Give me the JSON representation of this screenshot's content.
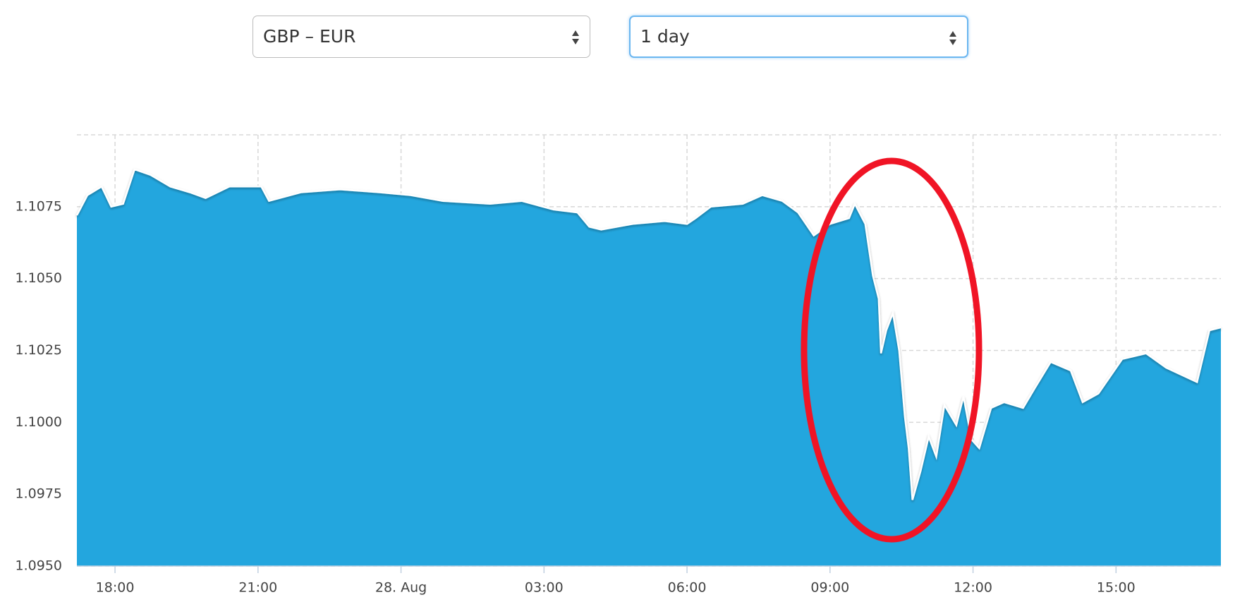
{
  "controls": {
    "pair": "GBP – EUR",
    "period": "1 day"
  },
  "chart_data": {
    "type": "area",
    "color": "#23a6de",
    "line_color": "#ffffff",
    "grid": true,
    "xlim": [
      17.2,
      41.2
    ],
    "ylim": [
      1.095,
      1.11
    ],
    "xticks": [
      {
        "value": 18,
        "label": "18:00"
      },
      {
        "value": 21,
        "label": "21:00"
      },
      {
        "value": 24,
        "label": "28. Aug"
      },
      {
        "value": 27,
        "label": "03:00"
      },
      {
        "value": 30,
        "label": "06:00"
      },
      {
        "value": 33,
        "label": "09:00"
      },
      {
        "value": 36,
        "label": "12:00"
      },
      {
        "value": 39,
        "label": "15:00"
      }
    ],
    "yticks": [
      {
        "value": 1.095,
        "label": "1.0950"
      },
      {
        "value": 1.0975,
        "label": "1.0975"
      },
      {
        "value": 1.1,
        "label": "1.1000"
      },
      {
        "value": 1.1025,
        "label": "1.1025"
      },
      {
        "value": 1.105,
        "label": "1.1050"
      },
      {
        "value": 1.1075,
        "label": "1.1075"
      }
    ],
    "x": [
      17.2,
      17.42,
      17.72,
      17.92,
      18.17,
      18.41,
      18.75,
      19.16,
      19.57,
      19.9,
      20.4,
      21.07,
      21.23,
      21.9,
      22.72,
      23.55,
      24.2,
      24.88,
      25.87,
      26.53,
      27.2,
      27.7,
      27.95,
      28.2,
      28.86,
      29.53,
      30.0,
      30.18,
      30.5,
      31.17,
      31.58,
      32.0,
      32.33,
      32.66,
      33.0,
      33.4,
      33.52,
      33.74,
      33.9,
      34.02,
      34.07,
      34.18,
      34.32,
      34.45,
      34.57,
      34.65,
      34.73,
      34.9,
      35.07,
      35.23,
      35.4,
      35.65,
      35.8,
      35.97,
      36.13,
      36.38,
      36.65,
      37.05,
      37.3,
      37.63,
      38.05,
      38.3,
      38.63,
      39.13,
      39.63,
      40.05,
      40.7,
      40.96,
      41.2
    ],
    "values": [
      1.1072,
      1.1079,
      1.1082,
      1.1075,
      1.1076,
      1.1088,
      1.1086,
      1.1082,
      1.108,
      1.1078,
      1.1082,
      1.1082,
      1.1077,
      1.108,
      1.1081,
      1.108,
      1.1079,
      1.1077,
      1.1076,
      1.1077,
      1.1074,
      1.1073,
      1.1068,
      1.1067,
      1.1069,
      1.107,
      1.1069,
      1.1071,
      1.1075,
      1.1076,
      1.1079,
      1.1077,
      1.1073,
      1.1065,
      1.1069,
      1.1071,
      1.1076,
      1.1069,
      1.1051,
      1.1043,
      1.1024,
      1.1032,
      1.1038,
      1.1025,
      1.1002,
      1.0991,
      1.0973,
      1.0983,
      1.0995,
      1.0988,
      1.1006,
      1.0999,
      1.1009,
      1.0994,
      1.0991,
      1.1005,
      1.1007,
      1.1005,
      1.1012,
      1.1021,
      1.1018,
      1.1007,
      1.101,
      1.1022,
      1.1024,
      1.1019,
      1.1014,
      1.1032,
      1.1033
    ]
  }
}
